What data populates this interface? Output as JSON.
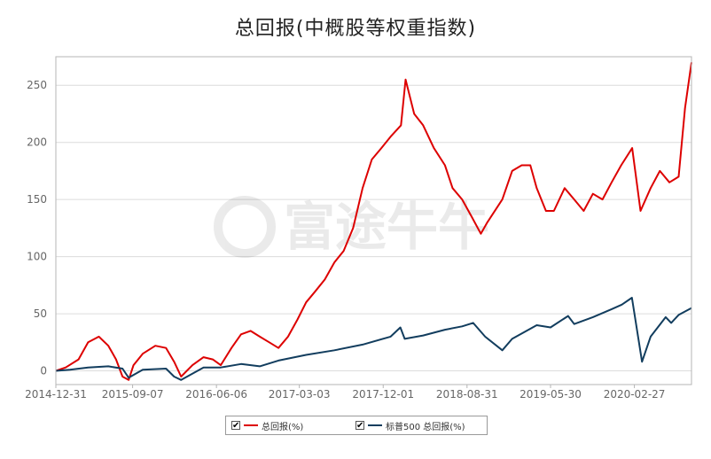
{
  "chart_data": {
    "type": "line",
    "title": "总回报(中概股等权重指数)",
    "ylim": [
      -12,
      275
    ],
    "yticks": [
      0,
      50,
      100,
      150,
      200,
      250
    ],
    "x_tick_labels": [
      "2014-12-31",
      "2015-09-07",
      "2016-06-06",
      "2017-03-03",
      "2017-12-01",
      "2018-08-31",
      "2019-05-30",
      "2020-02-27"
    ],
    "x_range": [
      "2014-12-31",
      "2020-08-31"
    ],
    "grid": true,
    "legend_position": "bottom",
    "series": [
      {
        "name": "总回报(%)",
        "color": "#dd0000",
        "x": [
          "2014-12-31",
          "2015-02-01",
          "2015-03-15",
          "2015-04-15",
          "2015-05-20",
          "2015-06-20",
          "2015-07-15",
          "2015-08-05",
          "2015-08-25",
          "2015-09-10",
          "2015-10-10",
          "2015-11-20",
          "2015-12-25",
          "2016-01-20",
          "2016-02-12",
          "2016-03-20",
          "2016-04-25",
          "2016-05-25",
          "2016-06-20",
          "2016-07-25",
          "2016-08-25",
          "2016-09-25",
          "2016-10-25",
          "2016-11-25",
          "2016-12-25",
          "2017-01-25",
          "2017-02-25",
          "2017-03-25",
          "2017-04-25",
          "2017-05-25",
          "2017-06-25",
          "2017-07-25",
          "2017-08-25",
          "2017-09-25",
          "2017-10-25",
          "2017-11-25",
          "2017-12-25",
          "2018-01-28",
          "2018-02-12",
          "2018-03-12",
          "2018-04-10",
          "2018-05-15",
          "2018-06-20",
          "2018-07-15",
          "2018-08-15",
          "2018-09-15",
          "2018-10-15",
          "2018-11-05",
          "2018-12-24",
          "2019-01-25",
          "2019-02-25",
          "2019-03-25",
          "2019-04-15",
          "2019-05-15",
          "2019-06-10",
          "2019-07-15",
          "2019-08-15",
          "2019-09-15",
          "2019-10-15",
          "2019-11-15",
          "2019-12-15",
          "2020-01-15",
          "2020-02-20",
          "2020-03-18",
          "2020-04-20",
          "2020-05-20",
          "2020-06-20",
          "2020-07-20",
          "2020-08-10",
          "2020-08-31"
        ],
        "values": [
          0,
          3,
          10,
          25,
          30,
          22,
          10,
          -5,
          -8,
          5,
          15,
          22,
          20,
          8,
          -5,
          5,
          12,
          10,
          5,
          20,
          32,
          35,
          30,
          25,
          20,
          30,
          45,
          60,
          70,
          80,
          95,
          105,
          125,
          160,
          185,
          195,
          205,
          215,
          255,
          225,
          215,
          195,
          180,
          160,
          150,
          135,
          120,
          130,
          150,
          175,
          180,
          180,
          160,
          140,
          140,
          160,
          150,
          140,
          155,
          150,
          165,
          180,
          195,
          140,
          160,
          175,
          165,
          170,
          230,
          270
        ]
      },
      {
        "name": "标普500 总回报(%)",
        "color": "#123d5e",
        "x": [
          "2014-12-31",
          "2015-02-15",
          "2015-04-15",
          "2015-06-20",
          "2015-08-05",
          "2015-08-25",
          "2015-10-10",
          "2015-12-25",
          "2016-01-20",
          "2016-02-12",
          "2016-04-25",
          "2016-06-20",
          "2016-08-25",
          "2016-10-25",
          "2016-12-25",
          "2017-03-25",
          "2017-06-25",
          "2017-09-25",
          "2017-12-25",
          "2018-01-26",
          "2018-02-09",
          "2018-04-10",
          "2018-06-20",
          "2018-08-15",
          "2018-09-20",
          "2018-10-29",
          "2018-12-24",
          "2019-01-25",
          "2019-04-15",
          "2019-05-30",
          "2019-07-26",
          "2019-08-15",
          "2019-10-15",
          "2019-12-15",
          "2020-01-17",
          "2020-02-19",
          "2020-03-23",
          "2020-04-20",
          "2020-06-08",
          "2020-06-26",
          "2020-07-20",
          "2020-08-31"
        ],
        "values": [
          0,
          1,
          3,
          4,
          2,
          -6,
          1,
          2,
          -5,
          -8,
          3,
          3,
          6,
          4,
          9,
          14,
          18,
          23,
          30,
          38,
          28,
          31,
          36,
          39,
          42,
          30,
          18,
          28,
          40,
          38,
          48,
          41,
          47,
          54,
          58,
          64,
          8,
          30,
          47,
          42,
          49,
          55
        ]
      }
    ]
  }
}
